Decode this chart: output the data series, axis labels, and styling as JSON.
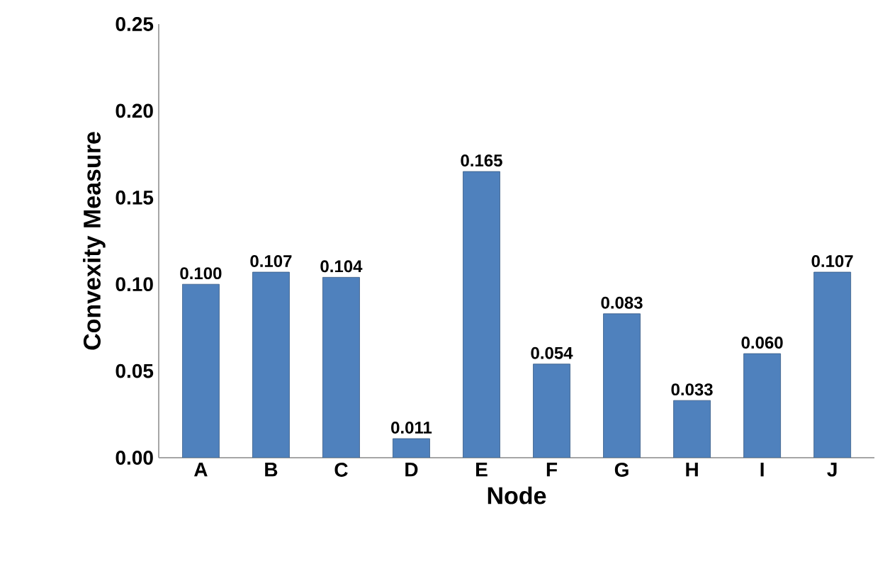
{
  "chart_data": {
    "type": "bar",
    "xlabel": "Node",
    "ylabel": "Convexity Measure",
    "categories": [
      "A",
      "B",
      "C",
      "D",
      "E",
      "F",
      "G",
      "H",
      "I",
      "J"
    ],
    "values": [
      0.1,
      0.107,
      0.104,
      0.011,
      0.165,
      0.054,
      0.083,
      0.033,
      0.06,
      0.107
    ],
    "value_labels": [
      "0.100",
      "0.107",
      "0.104",
      "0.011",
      "0.165",
      "0.054",
      "0.083",
      "0.033",
      "0.060",
      "0.107"
    ],
    "color": "#4f81bd",
    "ylim": [
      0,
      0.25
    ],
    "yticks": [
      {
        "value": 0,
        "label": "0.00"
      },
      {
        "value": 0.05,
        "label": "0.05"
      },
      {
        "value": 0.1,
        "label": "0.10"
      },
      {
        "value": 0.15,
        "label": "0.15"
      },
      {
        "value": 0.2,
        "label": "0.20"
      },
      {
        "value": 0.25,
        "label": "0.25"
      }
    ],
    "grid": false
  }
}
